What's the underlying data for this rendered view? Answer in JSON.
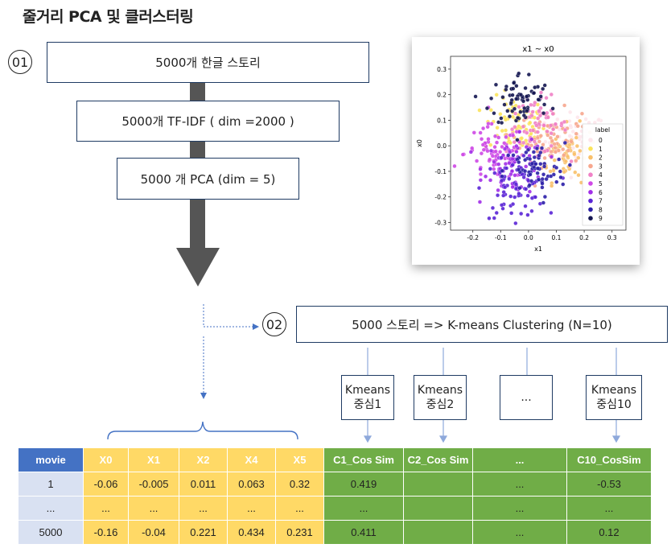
{
  "title": "줄거리 PCA 및 클러스터링",
  "step1": {
    "number": "01",
    "boxes": [
      "5000개 한글 스토리",
      "5000개 TF-IDF ( dim =2000 )",
      "5000 개 PCA (dim = 5)"
    ]
  },
  "step2": {
    "number": "02",
    "box": "5000 스토리 => K-means Clustering (N=10)",
    "centers": [
      {
        "line1": "Kmeans",
        "line2": "중심1"
      },
      {
        "line1": "Kmeans",
        "line2": "중심2"
      },
      {
        "line1": "...",
        "line2": ""
      },
      {
        "line1": "Kmeans",
        "line2": "중심10"
      }
    ]
  },
  "chart_data": {
    "type": "scatter",
    "title": "x1 ~ x0",
    "xlabel": "x1",
    "ylabel": "x0",
    "xlim": [
      -0.28,
      0.35
    ],
    "ylim": [
      -0.33,
      0.35
    ],
    "xticks": [
      "-0.2",
      "-0.1",
      "0.0",
      "0.1",
      "0.2",
      "0.3"
    ],
    "yticks": [
      "0.3",
      "0.2",
      "0.1",
      "0.0",
      "-0.1",
      "-0.2",
      "-0.3"
    ],
    "legend_title": "label",
    "legend_position": "right",
    "series": [
      {
        "name": "0",
        "color": "#fde6ec",
        "cx": 0.17,
        "cy": 0.02
      },
      {
        "name": "1",
        "color": "#fbe45b",
        "cx": -0.05,
        "cy": 0.08
      },
      {
        "name": "2",
        "color": "#f9c06a",
        "cx": 0.14,
        "cy": -0.03
      },
      {
        "name": "3",
        "color": "#f7a78e",
        "cx": 0.08,
        "cy": 0.03
      },
      {
        "name": "4",
        "color": "#f081c6",
        "cx": 0.03,
        "cy": 0.08
      },
      {
        "name": "5",
        "color": "#cf49e6",
        "cx": -0.12,
        "cy": -0.03
      },
      {
        "name": "6",
        "color": "#a12ee8",
        "cx": -0.05,
        "cy": -0.08
      },
      {
        "name": "7",
        "color": "#5a24d6",
        "cx": -0.05,
        "cy": -0.17
      },
      {
        "name": "8",
        "color": "#2b1fa8",
        "cx": 0.02,
        "cy": -0.1
      },
      {
        "name": "9",
        "color": "#141651",
        "cx": -0.03,
        "cy": 0.18
      }
    ]
  },
  "table": {
    "headers": [
      "movie",
      "X0",
      "X1",
      "X2",
      "X4",
      "X5",
      "C1_Cos Sim",
      "C2_Cos Sim",
      "...",
      "C10_CosSim"
    ],
    "rows": [
      [
        "1",
        "-0.06",
        "-0.005",
        "0.011",
        "0.063",
        "0.32",
        "0.419",
        "",
        "...",
        "-0.53"
      ],
      [
        "...",
        "...",
        "...",
        "...",
        "...",
        "...",
        "...",
        "",
        "...",
        "..."
      ],
      [
        "5000",
        "-0.16",
        "-0.04",
        "0.221",
        "0.434",
        "0.231",
        "0.411",
        "",
        "...",
        "0.12"
      ]
    ]
  }
}
